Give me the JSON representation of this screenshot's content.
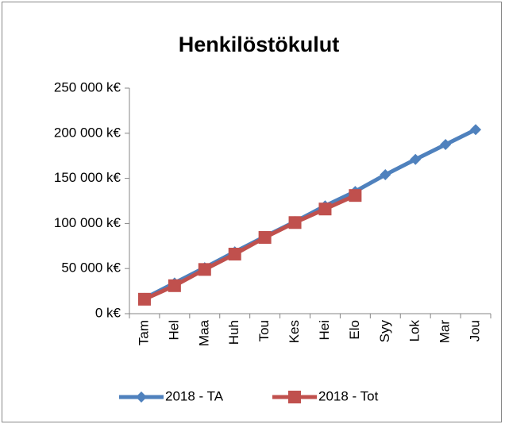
{
  "chart_data": {
    "type": "line",
    "title": "Henkilöstökulut",
    "categories": [
      "Tam",
      "Hel",
      "Maa",
      "Huh",
      "Tou",
      "Kes",
      "Hei",
      "Elo",
      "Syy",
      "Lok",
      "Mar",
      "Jou"
    ],
    "series": [
      {
        "name": "2018 - TA",
        "color": "#4f81bd",
        "marker": "diamond",
        "values": [
          17000,
          34000,
          51000,
          68500,
          85500,
          102000,
          119500,
          135500,
          154000,
          171000,
          187500,
          204000
        ]
      },
      {
        "name": "2018 - Tot",
        "color": "#c0504d",
        "marker": "square",
        "values": [
          16000,
          31000,
          49000,
          66000,
          84500,
          101000,
          116000,
          131000,
          null,
          null,
          null,
          null
        ]
      }
    ],
    "ylim": [
      0,
      250000
    ],
    "yticks": [
      {
        "value": 0,
        "label": "0 k€"
      },
      {
        "value": 50000,
        "label": "50 000 k€"
      },
      {
        "value": 100000,
        "label": "100 000 k€"
      },
      {
        "value": 150000,
        "label": "150 000 k€"
      },
      {
        "value": 200000,
        "label": "200 000 k€"
      },
      {
        "value": 250000,
        "label": "250 000 k€"
      }
    ],
    "grid": false,
    "legend": "bottom"
  }
}
